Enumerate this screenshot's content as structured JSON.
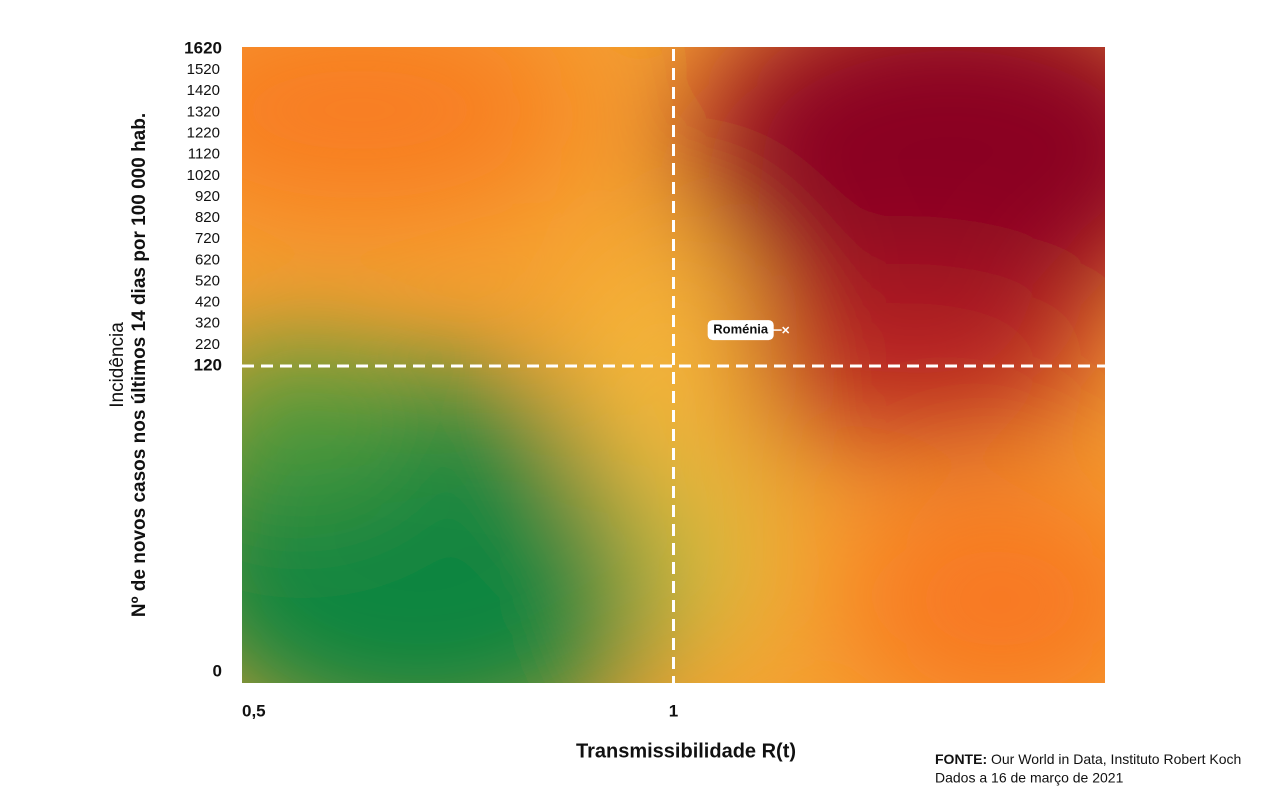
{
  "chart_data": {
    "type": "scatter",
    "x_label": "Transmissibilidade R(t)",
    "y_label": [
      "Incidência",
      "Nº de novos casos nos últimos 14 dias por 100 000 hab."
    ],
    "xlim": [
      0.5,
      1.5
    ],
    "xticks": [
      {
        "value": 0.5,
        "label": "0,5"
      },
      1
    ],
    "ylim": [
      0,
      1620
    ],
    "yticks": [
      0,
      120,
      220,
      320,
      420,
      520,
      620,
      720,
      820,
      920,
      1020,
      1120,
      1220,
      1320,
      1420,
      1520,
      1620
    ],
    "series": [
      {
        "name": "Roménia",
        "color": "#ffffff",
        "x": [
          1.13
        ],
        "values": [
          290
        ]
      }
    ],
    "source_label": "FONTE:",
    "source": "Our World in Data, Instituto Robert Koch",
    "note": "Dados a 16 de março de 2021"
  }
}
